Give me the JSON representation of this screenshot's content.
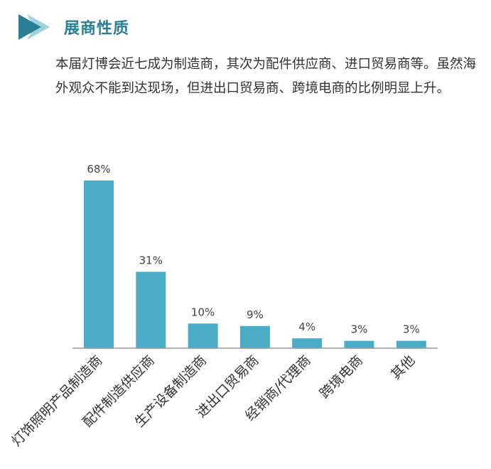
{
  "header": {
    "title": "展商性质",
    "icon": "double-chevron-right-icon",
    "icon_colors": [
      "#2a7f95",
      "#9ed3dd"
    ]
  },
  "description": "本届灯博会近七成为制造商，其次为配件供应商、进口贸易商等。虽然海外观众不能到达现场，但进出口贸易商、跨境电商的比例明显上升。",
  "chart_data": {
    "type": "bar",
    "categories": [
      "灯饰照明产品制造商",
      "配件制造供应商",
      "生产设备制造商",
      "进出口贸易商",
      "经销商/代理商",
      "跨境电商",
      "其他"
    ],
    "values": [
      68,
      31,
      10,
      9,
      4,
      3,
      3
    ],
    "value_labels": [
      "68%",
      "31%",
      "10%",
      "9%",
      "4%",
      "3%",
      "3%"
    ],
    "title": "",
    "xlabel": "",
    "ylabel": "",
    "ylim": [
      0,
      70
    ],
    "grid": false,
    "legend": "none",
    "bar_color": "#4bacc6",
    "axis_color": "#999999"
  }
}
